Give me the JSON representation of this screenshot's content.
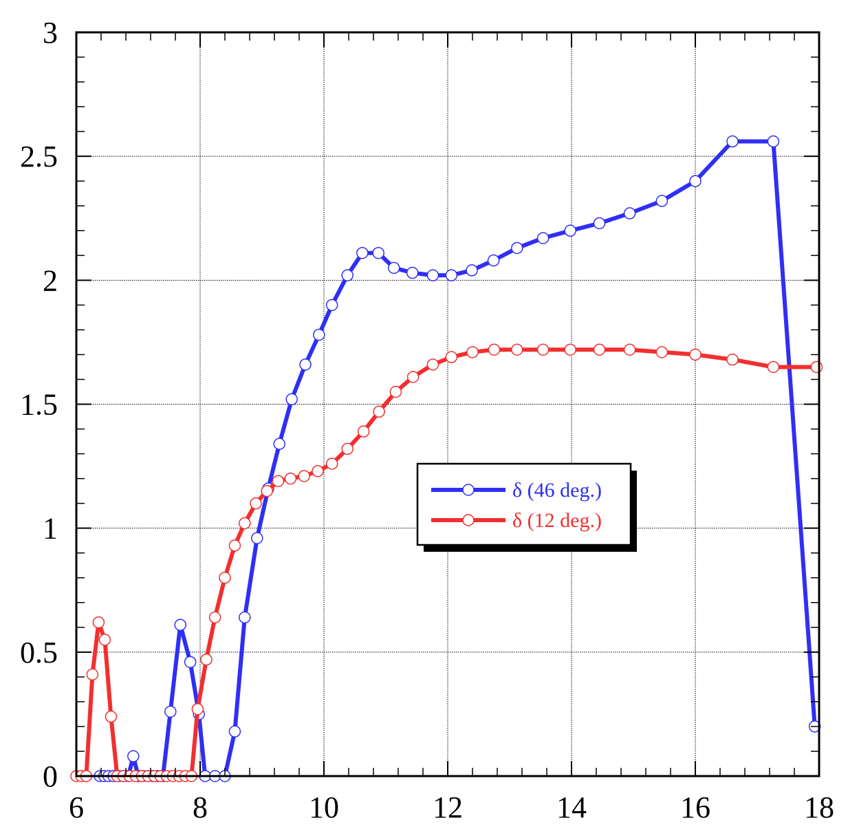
{
  "chart_data": {
    "type": "line",
    "title": "",
    "xlabel": "",
    "ylabel": "",
    "xlim": [
      6,
      18
    ],
    "ylim": [
      0,
      3
    ],
    "x_ticks": [
      6,
      8,
      10,
      12,
      14,
      16,
      18
    ],
    "y_ticks": [
      0,
      0.5,
      1,
      1.5,
      2,
      2.5,
      3
    ],
    "x_tick_labels": [
      "6",
      "8",
      "10",
      "12",
      "14",
      "16",
      "18"
    ],
    "y_tick_labels": [
      "0",
      "0.5",
      "1",
      "1.5",
      "2",
      "2.5",
      "3"
    ],
    "grid": true,
    "legend_position": "center-right",
    "series": [
      {
        "name": "δ (46 deg.)",
        "color": "#2f2ff5",
        "marker": "open-circle",
        "points": [
          [
            6.38,
            0
          ],
          [
            6.45,
            0
          ],
          [
            6.52,
            0
          ],
          [
            6.6,
            0
          ],
          [
            6.68,
            0
          ],
          [
            6.76,
            0
          ],
          [
            6.84,
            0
          ],
          [
            6.92,
            0.08
          ],
          [
            7.0,
            0
          ],
          [
            7.08,
            0
          ],
          [
            7.16,
            0
          ],
          [
            7.24,
            0
          ],
          [
            7.32,
            0
          ],
          [
            7.4,
            0
          ],
          [
            7.52,
            0.26
          ],
          [
            7.68,
            0.61
          ],
          [
            7.84,
            0.46
          ],
          [
            7.98,
            0.25
          ],
          [
            8.08,
            0
          ],
          [
            8.24,
            0
          ],
          [
            8.4,
            0
          ],
          [
            8.56,
            0.18
          ],
          [
            8.72,
            0.64
          ],
          [
            8.92,
            0.96
          ],
          [
            9.1,
            1.16
          ],
          [
            9.28,
            1.34
          ],
          [
            9.48,
            1.52
          ],
          [
            9.7,
            1.66
          ],
          [
            9.92,
            1.78
          ],
          [
            10.13,
            1.9
          ],
          [
            10.38,
            2.02
          ],
          [
            10.62,
            2.11
          ],
          [
            10.88,
            2.11
          ],
          [
            11.13,
            2.05
          ],
          [
            11.43,
            2.03
          ],
          [
            11.76,
            2.02
          ],
          [
            12.06,
            2.02
          ],
          [
            12.39,
            2.04
          ],
          [
            12.74,
            2.08
          ],
          [
            13.12,
            2.13
          ],
          [
            13.54,
            2.17
          ],
          [
            13.98,
            2.2
          ],
          [
            14.45,
            2.23
          ],
          [
            14.94,
            2.27
          ],
          [
            15.46,
            2.32
          ],
          [
            16.0,
            2.4
          ],
          [
            16.6,
            2.56
          ],
          [
            17.26,
            2.56
          ],
          [
            17.93,
            0.2
          ]
        ]
      },
      {
        "name": "δ (12 deg.)",
        "color": "#f22f2f",
        "marker": "open-circle",
        "points": [
          [
            6.0,
            0
          ],
          [
            6.08,
            0
          ],
          [
            6.16,
            0
          ],
          [
            6.26,
            0.41
          ],
          [
            6.36,
            0.62
          ],
          [
            6.46,
            0.55
          ],
          [
            6.56,
            0.24
          ],
          [
            6.66,
            0
          ],
          [
            6.76,
            0
          ],
          [
            6.86,
            0
          ],
          [
            6.96,
            0
          ],
          [
            7.06,
            0
          ],
          [
            7.16,
            0
          ],
          [
            7.26,
            0
          ],
          [
            7.36,
            0
          ],
          [
            7.46,
            0
          ],
          [
            7.56,
            0
          ],
          [
            7.66,
            0
          ],
          [
            7.76,
            0
          ],
          [
            7.86,
            0
          ],
          [
            7.96,
            0.27
          ],
          [
            8.1,
            0.47
          ],
          [
            8.24,
            0.64
          ],
          [
            8.4,
            0.8
          ],
          [
            8.56,
            0.93
          ],
          [
            8.72,
            1.02
          ],
          [
            8.9,
            1.1
          ],
          [
            9.08,
            1.15
          ],
          [
            9.26,
            1.19
          ],
          [
            9.46,
            1.2
          ],
          [
            9.68,
            1.21
          ],
          [
            9.9,
            1.23
          ],
          [
            10.13,
            1.26
          ],
          [
            10.38,
            1.32
          ],
          [
            10.64,
            1.39
          ],
          [
            10.89,
            1.47
          ],
          [
            11.16,
            1.55
          ],
          [
            11.44,
            1.61
          ],
          [
            11.76,
            1.66
          ],
          [
            12.06,
            1.69
          ],
          [
            12.4,
            1.71
          ],
          [
            12.75,
            1.72
          ],
          [
            13.12,
            1.72
          ],
          [
            13.54,
            1.72
          ],
          [
            13.98,
            1.72
          ],
          [
            14.45,
            1.72
          ],
          [
            14.94,
            1.72
          ],
          [
            15.46,
            1.71
          ],
          [
            16.0,
            1.7
          ],
          [
            16.6,
            1.68
          ],
          [
            17.26,
            1.65
          ],
          [
            17.96,
            1.65
          ]
        ]
      }
    ]
  }
}
